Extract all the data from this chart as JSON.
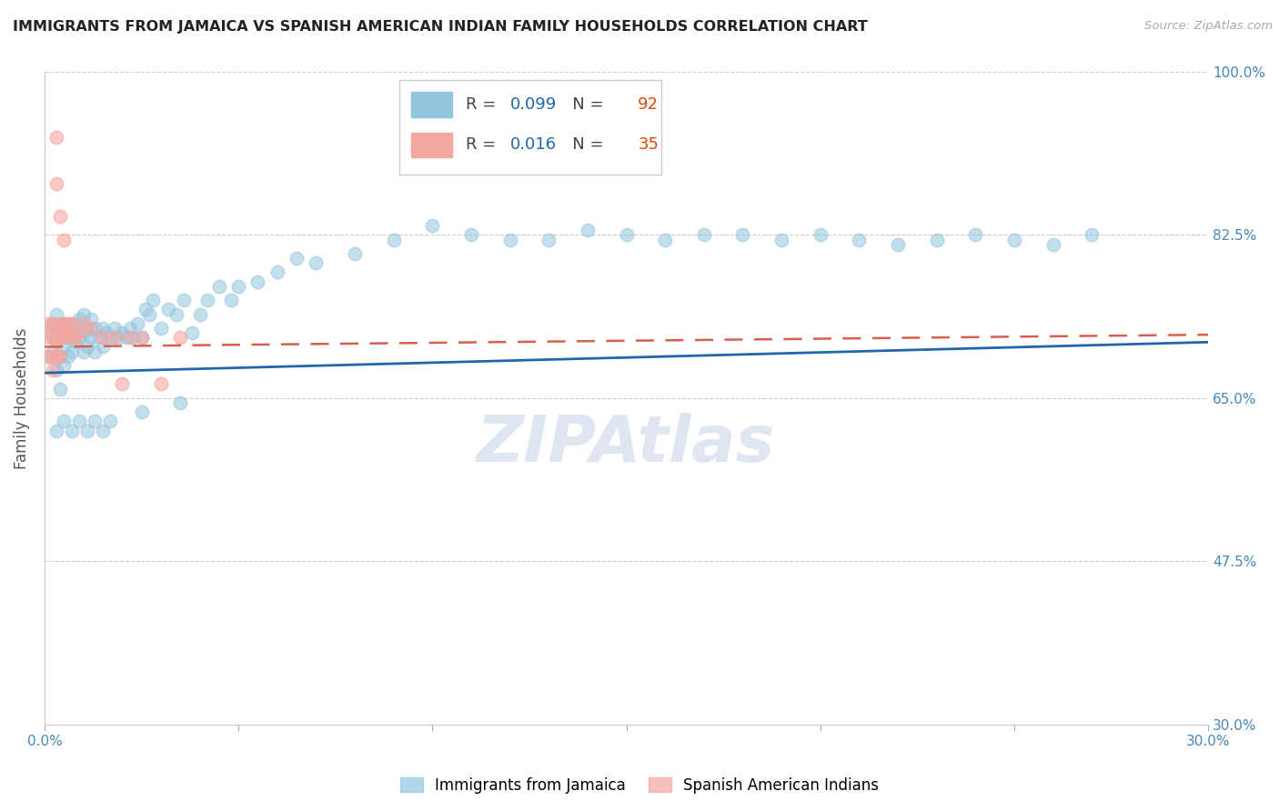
{
  "title": "IMMIGRANTS FROM JAMAICA VS SPANISH AMERICAN INDIAN FAMILY HOUSEHOLDS CORRELATION CHART",
  "source": "Source: ZipAtlas.com",
  "ylabel": "Family Households",
  "xlim": [
    0.0,
    0.3
  ],
  "ylim": [
    0.3,
    1.0
  ],
  "ytick_positions": [
    0.3,
    0.475,
    0.65,
    0.825,
    1.0
  ],
  "ytick_labels": [
    "30.0%",
    "47.5%",
    "65.0%",
    "82.5%",
    "100.0%"
  ],
  "xtick_positions": [
    0.0,
    0.05,
    0.1,
    0.15,
    0.2,
    0.25,
    0.3
  ],
  "xtick_labels": [
    "0.0%",
    "",
    "",
    "",
    "",
    "",
    "30.0%"
  ],
  "blue_R": "0.099",
  "blue_N": "92",
  "pink_R": "0.016",
  "pink_N": "35",
  "blue_color": "#92c5de",
  "pink_color": "#f4a6a0",
  "blue_line_color": "#2166ac",
  "pink_line_color": "#d6604d",
  "background_color": "#ffffff",
  "grid_color": "#cccccc",
  "blue_x": [
    0.001,
    0.001,
    0.002,
    0.002,
    0.003,
    0.003,
    0.003,
    0.004,
    0.004,
    0.004,
    0.005,
    0.005,
    0.005,
    0.005,
    0.006,
    0.006,
    0.006,
    0.007,
    0.007,
    0.008,
    0.008,
    0.009,
    0.009,
    0.01,
    0.01,
    0.01,
    0.011,
    0.011,
    0.012,
    0.012,
    0.013,
    0.013,
    0.014,
    0.015,
    0.015,
    0.016,
    0.017,
    0.018,
    0.019,
    0.02,
    0.021,
    0.022,
    0.023,
    0.024,
    0.025,
    0.026,
    0.027,
    0.028,
    0.03,
    0.032,
    0.034,
    0.036,
    0.038,
    0.04,
    0.042,
    0.045,
    0.048,
    0.05,
    0.055,
    0.06,
    0.065,
    0.07,
    0.08,
    0.09,
    0.1,
    0.11,
    0.12,
    0.13,
    0.14,
    0.15,
    0.16,
    0.17,
    0.18,
    0.19,
    0.2,
    0.21,
    0.22,
    0.23,
    0.24,
    0.25,
    0.26,
    0.27,
    0.003,
    0.005,
    0.007,
    0.009,
    0.011,
    0.013,
    0.015,
    0.017,
    0.025,
    0.035
  ],
  "blue_y": [
    0.695,
    0.72,
    0.7,
    0.73,
    0.68,
    0.71,
    0.74,
    0.66,
    0.695,
    0.72,
    0.685,
    0.705,
    0.72,
    0.73,
    0.695,
    0.715,
    0.73,
    0.7,
    0.725,
    0.71,
    0.73,
    0.715,
    0.735,
    0.7,
    0.72,
    0.74,
    0.705,
    0.725,
    0.715,
    0.735,
    0.7,
    0.725,
    0.715,
    0.705,
    0.725,
    0.72,
    0.715,
    0.725,
    0.715,
    0.72,
    0.715,
    0.725,
    0.715,
    0.73,
    0.715,
    0.745,
    0.74,
    0.755,
    0.725,
    0.745,
    0.74,
    0.755,
    0.72,
    0.74,
    0.755,
    0.77,
    0.755,
    0.77,
    0.775,
    0.785,
    0.8,
    0.795,
    0.805,
    0.82,
    0.835,
    0.825,
    0.82,
    0.82,
    0.83,
    0.825,
    0.82,
    0.825,
    0.825,
    0.82,
    0.825,
    0.82,
    0.815,
    0.82,
    0.825,
    0.82,
    0.815,
    0.825,
    0.615,
    0.625,
    0.615,
    0.625,
    0.615,
    0.625,
    0.615,
    0.625,
    0.635,
    0.645
  ],
  "pink_x": [
    0.001,
    0.001,
    0.001,
    0.002,
    0.002,
    0.002,
    0.002,
    0.003,
    0.003,
    0.003,
    0.003,
    0.004,
    0.004,
    0.004,
    0.005,
    0.005,
    0.005,
    0.006,
    0.006,
    0.007,
    0.007,
    0.008,
    0.009,
    0.01,
    0.012,
    0.015,
    0.018,
    0.02,
    0.022,
    0.025,
    0.03,
    0.035,
    0.003,
    0.004,
    0.005
  ],
  "pink_y": [
    0.695,
    0.715,
    0.73,
    0.68,
    0.695,
    0.715,
    0.73,
    0.695,
    0.71,
    0.725,
    0.88,
    0.695,
    0.715,
    0.73,
    0.715,
    0.72,
    0.73,
    0.72,
    0.73,
    0.715,
    0.73,
    0.715,
    0.72,
    0.73,
    0.725,
    0.715,
    0.715,
    0.665,
    0.715,
    0.715,
    0.665,
    0.715,
    0.93,
    0.845,
    0.82
  ],
  "blue_trend_x": [
    0.0,
    0.3
  ],
  "blue_trend_y": [
    0.677,
    0.71
  ],
  "pink_trend_x": [
    0.0,
    0.3
  ],
  "pink_trend_y": [
    0.705,
    0.718
  ],
  "watermark": "ZIPAtlas",
  "watermark_color": "#c8d8e8"
}
